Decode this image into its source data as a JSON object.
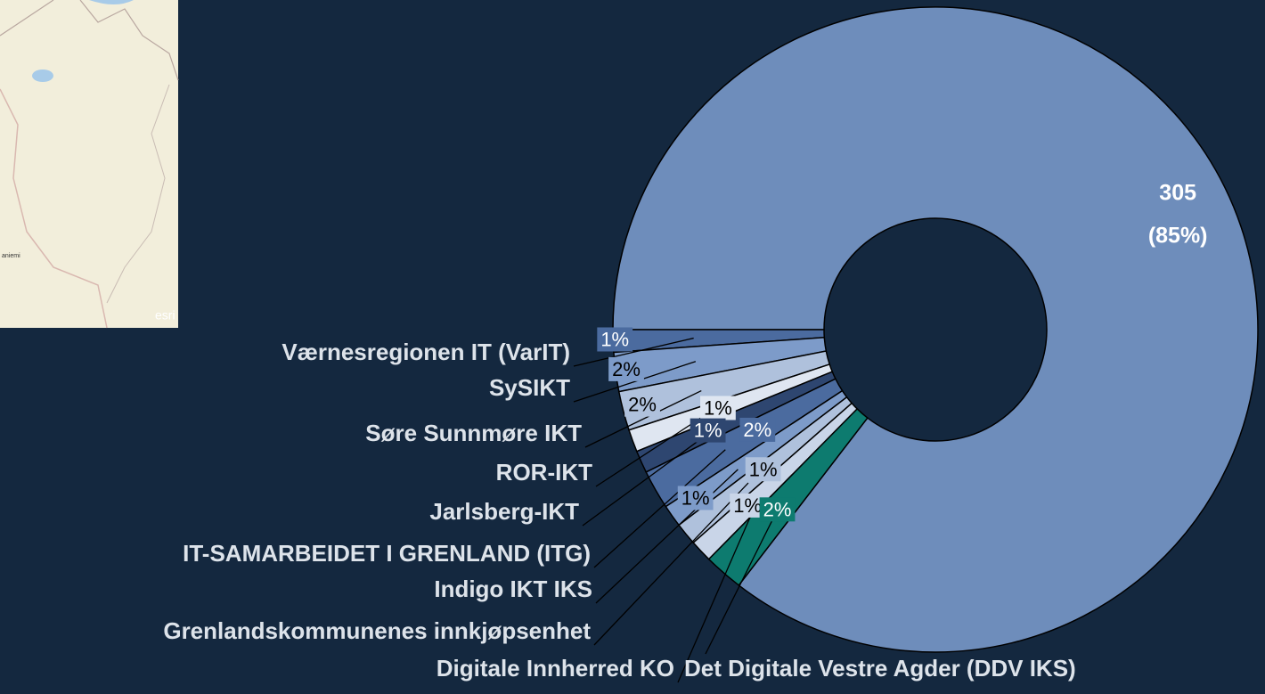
{
  "map": {
    "labels": [
      "aniemi",
      "esri"
    ]
  },
  "chart_data": {
    "type": "donut",
    "categories": [
      null,
      "Værnesregionen IT (VarIT)",
      "SySIKT",
      "Søre Sunnmøre IKT",
      "ROR-IKT",
      "Jarlsberg-IKT",
      "IT-SAMARBEIDET I GRENLAND (ITG)",
      "Indigo IKT IKS",
      "Grenlandskommunenes innkjøpsenhet",
      "Digitale Innherred KO",
      "Det Digitale Vestre Agder (DDV IKS)"
    ],
    "values": [
      305,
      4,
      7,
      7,
      4,
      4,
      7,
      4,
      4,
      4,
      7
    ],
    "value_labels": [
      [
        "305",
        "(85%)"
      ],
      "1%",
      "2%",
      "2%",
      "1%",
      "1%",
      "2%",
      "1%",
      "1%",
      "1%",
      "2%"
    ],
    "colors": [
      "#6e8dbb",
      "#4b6b9f",
      "#7d9bc9",
      "#afc1dc",
      "#dfe6f1",
      "#2e4670",
      "#4b6b9f",
      "#7d9bc9",
      "#afc1dc",
      "#c9d5e8",
      "#0d7b6f"
    ]
  }
}
